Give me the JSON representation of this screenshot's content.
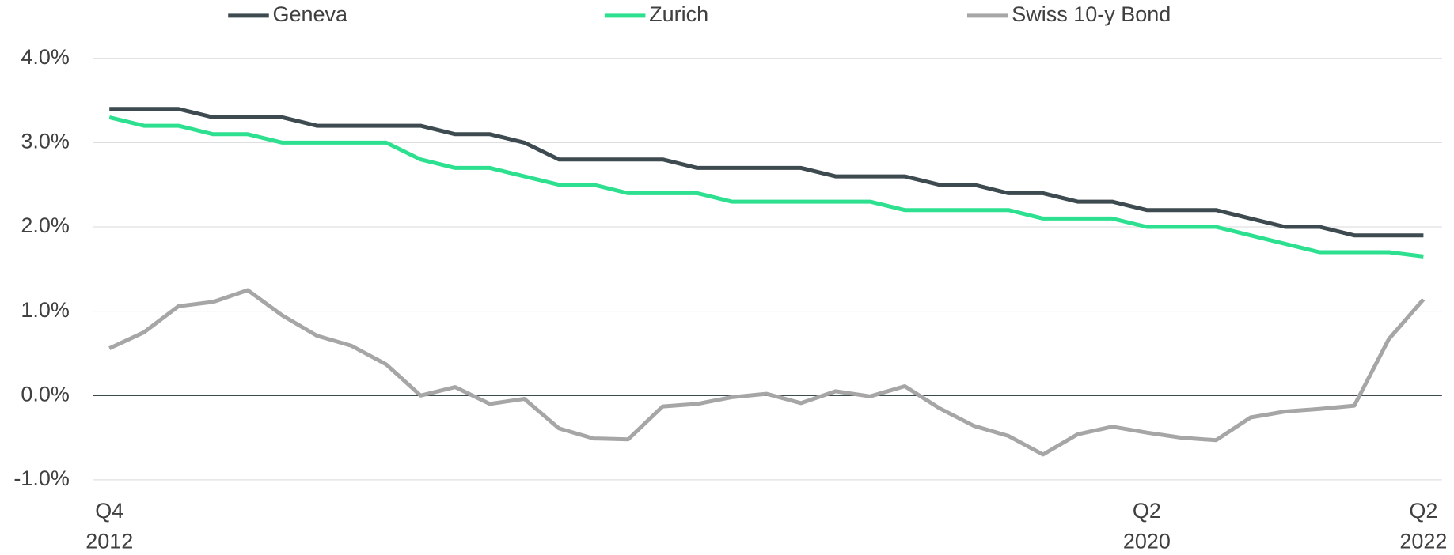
{
  "chart_data": {
    "type": "line",
    "categories": [
      [
        "Q4",
        "2012"
      ],
      null,
      null,
      null,
      null,
      null,
      null,
      null,
      null,
      null,
      null,
      null,
      null,
      null,
      null,
      null,
      null,
      null,
      null,
      null,
      null,
      null,
      null,
      null,
      null,
      null,
      null,
      null,
      null,
      null,
      [
        "Q2",
        "2020"
      ],
      null,
      null,
      null,
      null,
      null,
      null,
      null,
      [
        "Q2",
        "2022"
      ]
    ],
    "series": [
      {
        "name": "Geneva",
        "color": "#3d4a4f",
        "values": [
          3.4,
          3.4,
          3.4,
          3.3,
          3.3,
          3.3,
          3.2,
          3.2,
          3.2,
          3.2,
          3.1,
          3.1,
          3.0,
          2.8,
          2.8,
          2.8,
          2.8,
          2.7,
          2.7,
          2.7,
          2.7,
          2.6,
          2.6,
          2.6,
          2.5,
          2.5,
          2.4,
          2.4,
          2.3,
          2.3,
          2.2,
          2.2,
          2.2,
          2.1,
          2.0,
          2.0,
          1.9,
          1.9,
          1.9
        ]
      },
      {
        "name": "Zurich",
        "color": "#2de08f",
        "values": [
          3.3,
          3.2,
          3.2,
          3.1,
          3.1,
          3.0,
          3.0,
          3.0,
          3.0,
          2.8,
          2.7,
          2.7,
          2.6,
          2.5,
          2.5,
          2.4,
          2.4,
          2.4,
          2.3,
          2.3,
          2.3,
          2.3,
          2.3,
          2.2,
          2.2,
          2.2,
          2.2,
          2.1,
          2.1,
          2.1,
          2.0,
          2.0,
          2.0,
          1.9,
          1.8,
          1.7,
          1.7,
          1.7,
          1.65
        ]
      },
      {
        "name": "Swiss 10-y Bond",
        "color": "#a6a6a6",
        "values": [
          0.56,
          0.75,
          1.06,
          1.11,
          1.25,
          0.95,
          0.71,
          0.59,
          0.37,
          0.0,
          0.1,
          -0.1,
          -0.04,
          -0.39,
          -0.51,
          -0.52,
          -0.13,
          -0.1,
          -0.02,
          0.02,
          -0.09,
          0.05,
          -0.01,
          0.11,
          -0.15,
          -0.36,
          -0.48,
          -0.7,
          -0.46,
          -0.37,
          -0.44,
          -0.5,
          -0.53,
          -0.26,
          -0.19,
          -0.16,
          -0.12,
          0.67,
          1.14
        ]
      }
    ],
    "ylim": [
      -1,
      4
    ],
    "yticks": [
      {
        "value": -1,
        "label": "-1.0%"
      },
      {
        "value": 0,
        "label": "0.0%"
      },
      {
        "value": 1,
        "label": "1.0%"
      },
      {
        "value": 2,
        "label": "2.0%"
      },
      {
        "value": 3,
        "label": "3.0%"
      },
      {
        "value": 4,
        "label": "4.0%"
      }
    ],
    "grid": true,
    "legend": "top"
  }
}
